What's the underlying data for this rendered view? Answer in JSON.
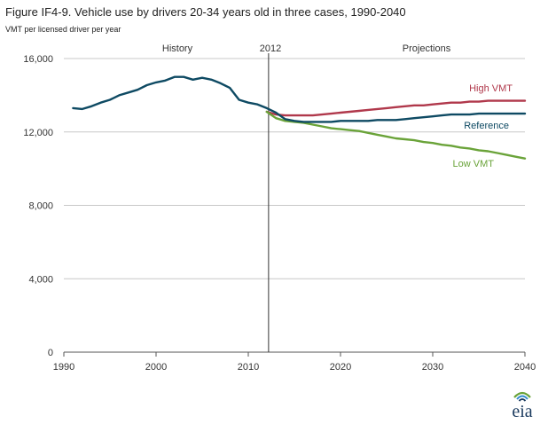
{
  "title": "Figure IF4-9. Vehicle use by drivers 20-34 years old in three cases, 1990-2040",
  "subtitle": "VMT per licensed driver  per year",
  "annotations": {
    "history": "History",
    "year_marker": "2012",
    "projections": "Projections"
  },
  "logo": {
    "text": "eia"
  },
  "colors": {
    "reference": "#0e4a63",
    "high": "#b0384b",
    "low": "#6aa339",
    "grid": "#c8c8c8",
    "axis": "#555555",
    "marker": "#333333"
  },
  "chart_data": {
    "type": "line",
    "title": "Figure IF4-9. Vehicle use by drivers 20-34 years old in three cases, 1990-2040",
    "xlabel": "",
    "ylabel": "VMT per licensed driver  per year",
    "xlim": [
      1990,
      2040
    ],
    "ylim": [
      0,
      16000
    ],
    "x_ticks": [
      1990,
      2000,
      2010,
      2020,
      2030,
      2040
    ],
    "y_ticks": [
      0,
      4000,
      8000,
      12000,
      16000
    ],
    "x_tick_labels": [
      "1990",
      "2000",
      "2010",
      "2020",
      "2030",
      "2040"
    ],
    "y_tick_labels": [
      "0",
      "4,000",
      "8,000",
      "12,000",
      "16,000"
    ],
    "grid": "horizontal",
    "vertical_marker": 2012.2,
    "series": [
      {
        "key": "reference",
        "name": "Reference",
        "x": [
          1991,
          1992,
          1993,
          1994,
          1995,
          1996,
          1997,
          1998,
          1999,
          2000,
          2001,
          2002,
          2003,
          2004,
          2005,
          2006,
          2007,
          2008,
          2009,
          2010,
          2011,
          2012,
          2013,
          2014,
          2015,
          2016,
          2017,
          2018,
          2019,
          2020,
          2021,
          2022,
          2023,
          2024,
          2025,
          2026,
          2027,
          2028,
          2029,
          2030,
          2031,
          2032,
          2033,
          2034,
          2035,
          2036,
          2037,
          2038,
          2039,
          2040
        ],
        "values": [
          13300,
          13250,
          13400,
          13600,
          13750,
          14000,
          14150,
          14300,
          14550,
          14700,
          14800,
          15000,
          15000,
          14850,
          14950,
          14850,
          14650,
          14400,
          13750,
          13600,
          13500,
          13300,
          13050,
          12700,
          12600,
          12550,
          12550,
          12550,
          12550,
          12600,
          12600,
          12600,
          12600,
          12650,
          12650,
          12650,
          12700,
          12750,
          12800,
          12850,
          12900,
          12950,
          12950,
          12950,
          13000,
          13000,
          13000,
          13000,
          13000,
          13000
        ]
      },
      {
        "key": "high",
        "name": "High VMT",
        "x": [
          2012,
          2013,
          2014,
          2015,
          2016,
          2017,
          2018,
          2019,
          2020,
          2021,
          2022,
          2023,
          2024,
          2025,
          2026,
          2027,
          2028,
          2029,
          2030,
          2031,
          2032,
          2033,
          2034,
          2035,
          2036,
          2037,
          2038,
          2039,
          2040
        ],
        "values": [
          13100,
          12950,
          12900,
          12900,
          12900,
          12900,
          12950,
          13000,
          13050,
          13100,
          13150,
          13200,
          13250,
          13300,
          13350,
          13400,
          13450,
          13450,
          13500,
          13550,
          13600,
          13600,
          13650,
          13650,
          13700,
          13700,
          13700,
          13700,
          13700
        ]
      },
      {
        "key": "low",
        "name": "Low VMT",
        "x": [
          2012,
          2013,
          2014,
          2015,
          2016,
          2017,
          2018,
          2019,
          2020,
          2021,
          2022,
          2023,
          2024,
          2025,
          2026,
          2027,
          2028,
          2029,
          2030,
          2031,
          2032,
          2033,
          2034,
          2035,
          2036,
          2037,
          2038,
          2039,
          2040
        ],
        "values": [
          13100,
          12750,
          12600,
          12550,
          12500,
          12400,
          12300,
          12200,
          12150,
          12100,
          12050,
          11950,
          11850,
          11750,
          11650,
          11600,
          11550,
          11450,
          11400,
          11300,
          11250,
          11150,
          11100,
          11000,
          10950,
          10850,
          10750,
          10650,
          10550
        ]
      }
    ]
  }
}
